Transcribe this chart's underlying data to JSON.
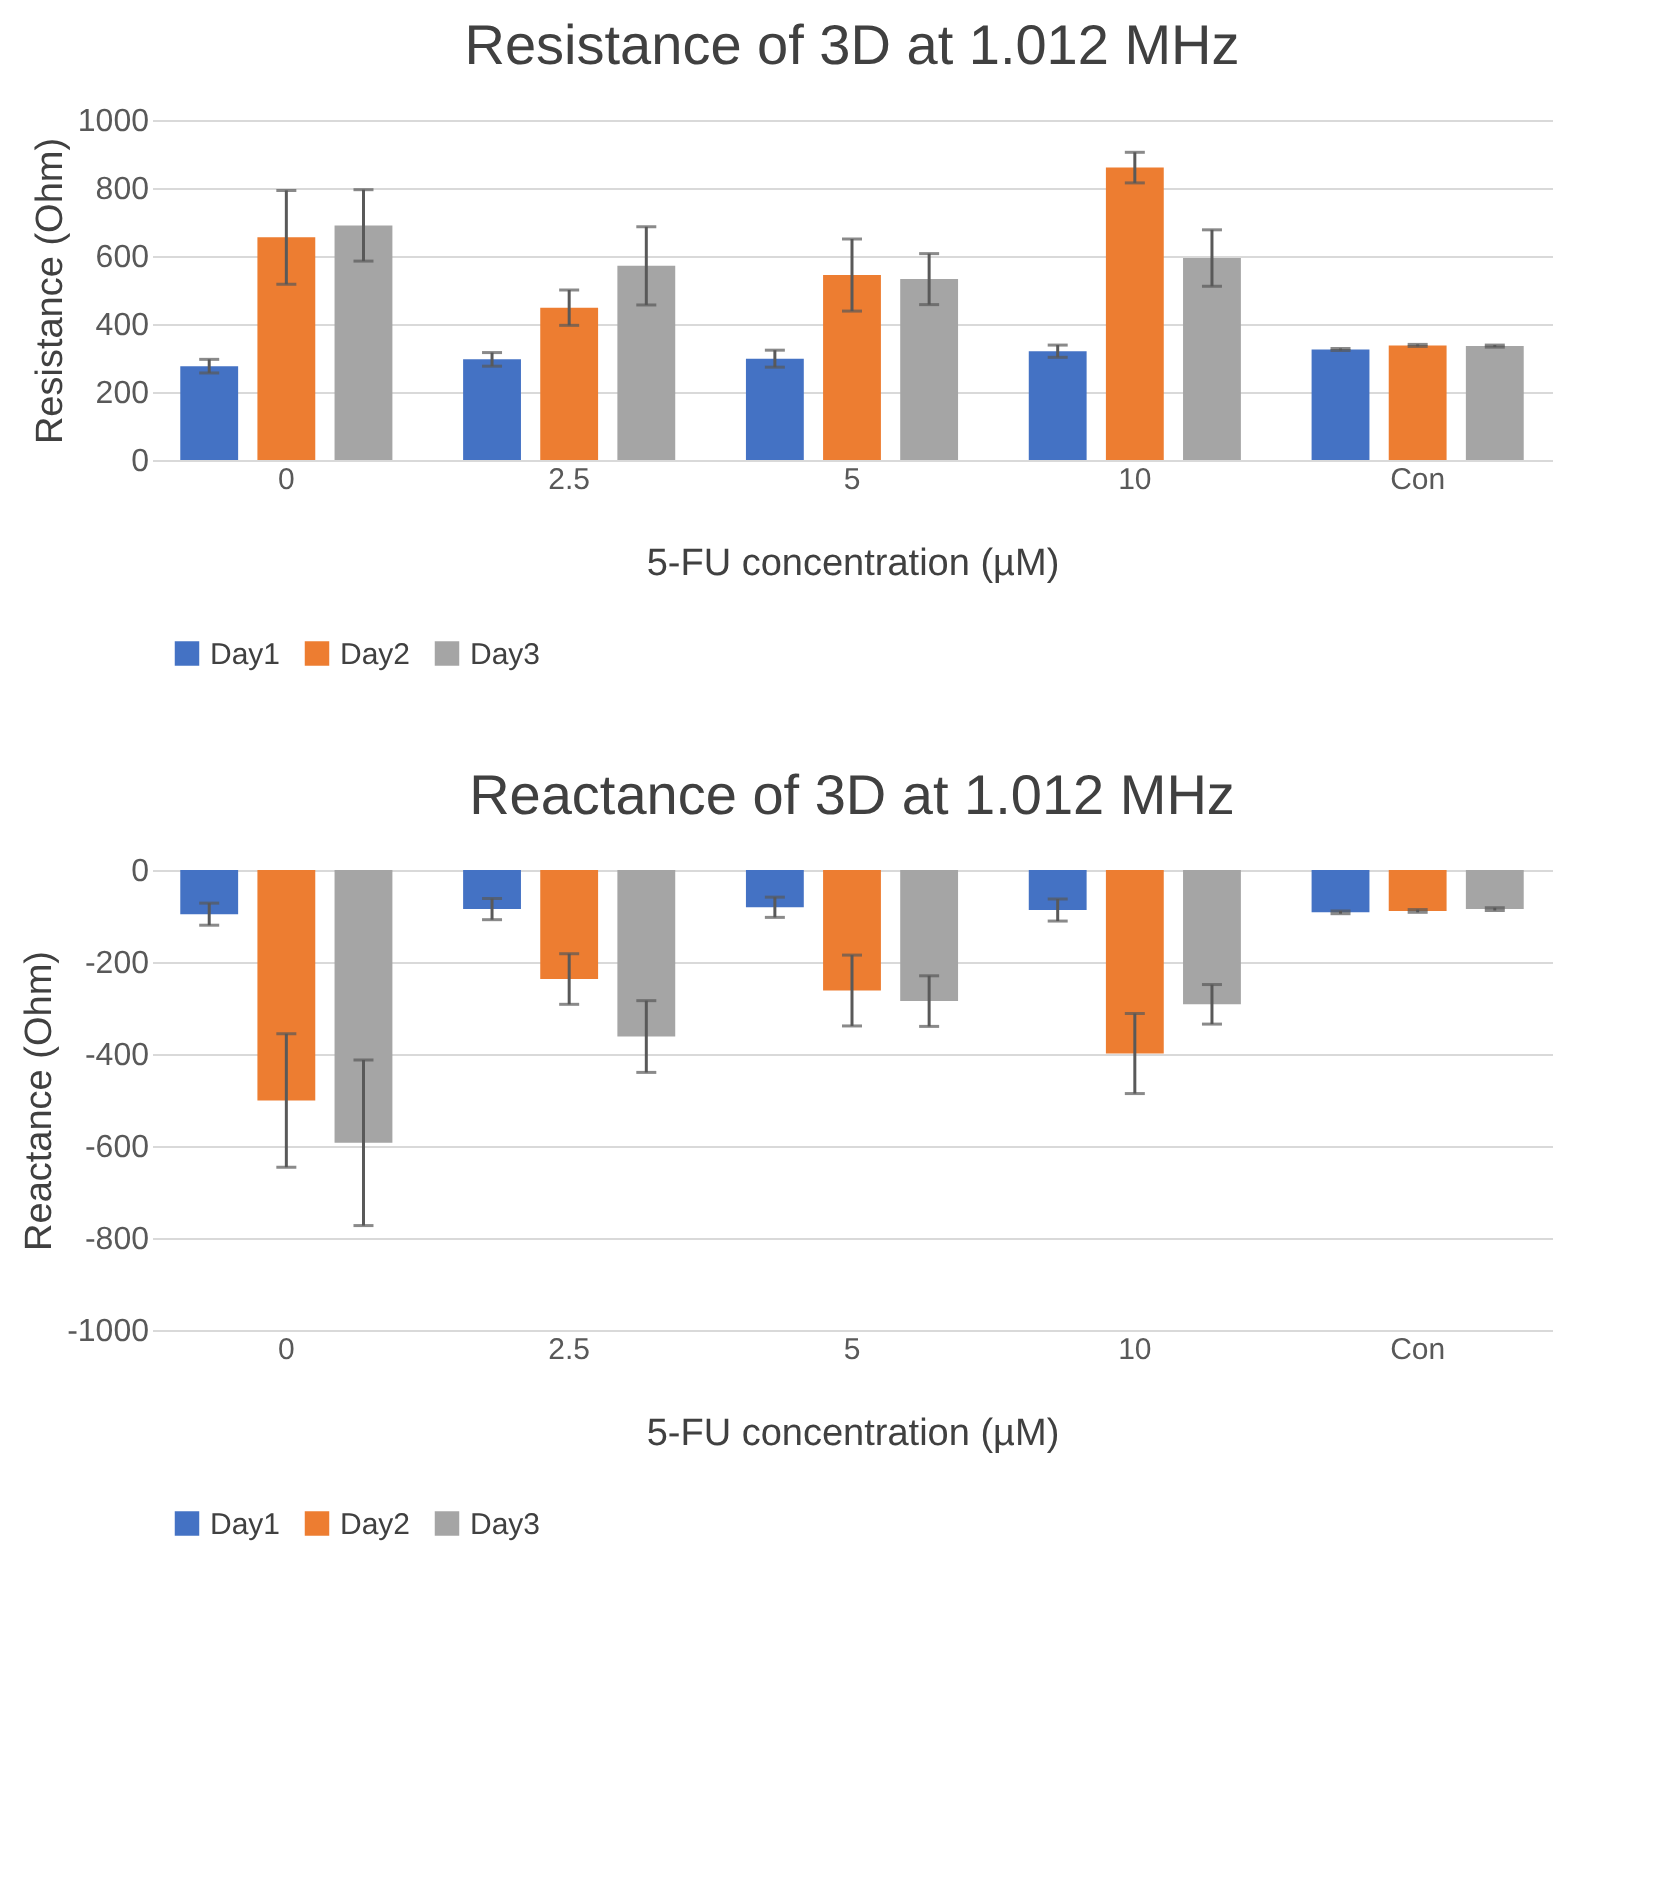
{
  "chart_data": [
    {
      "type": "bar",
      "title": "Resistance of 3D at 1.012 MHz",
      "xlabel": "5-FU concentration (µM)",
      "ylabel": "Resistance (Ohm)",
      "categories": [
        "0",
        "2.5",
        "5",
        "10",
        "Con"
      ],
      "ylim": [
        0,
        1000
      ],
      "yticks": [
        0,
        200,
        400,
        600,
        800,
        1000
      ],
      "grid": "y",
      "legend": "bottom",
      "series": [
        {
          "name": "Day1",
          "color": "#4472c4",
          "values": [
            276,
            296,
            298,
            320,
            325
          ],
          "errors": [
            20,
            20,
            25,
            18,
            3
          ]
        },
        {
          "name": "Day2",
          "color": "#ed7d31",
          "values": [
            655,
            448,
            544,
            860,
            337
          ],
          "errors": [
            138,
            52,
            106,
            45,
            3
          ]
        },
        {
          "name": "Day3",
          "color": "#a5a5a5",
          "values": [
            690,
            571,
            532,
            594,
            335
          ],
          "errors": [
            105,
            115,
            75,
            83,
            3
          ]
        }
      ]
    },
    {
      "type": "bar",
      "title": "Reactance of 3D at 1.012 MHz",
      "xlabel": "5-FU concentration (µM)",
      "ylabel": "Reactance (Ohm)",
      "categories": [
        "0",
        "2.5",
        "5",
        "10",
        "Con"
      ],
      "ylim": [
        -1000,
        0
      ],
      "yticks": [
        -1000,
        -800,
        -600,
        -400,
        -200,
        0
      ],
      "grid": "y",
      "legend": "bottom",
      "series": [
        {
          "name": "Day1",
          "color": "#4472c4",
          "values": [
            -96,
            -85,
            -81,
            -87,
            -92
          ],
          "errors": [
            24,
            23,
            22,
            24,
            3
          ]
        },
        {
          "name": "Day2",
          "color": "#ed7d31",
          "values": [
            -501,
            -237,
            -262,
            -399,
            -89
          ],
          "errors": [
            145,
            55,
            77,
            87,
            3
          ]
        },
        {
          "name": "Day3",
          "color": "#a5a5a5",
          "values": [
            -593,
            -362,
            -285,
            -292,
            -85
          ],
          "errors": [
            180,
            78,
            55,
            43,
            3
          ]
        }
      ]
    }
  ]
}
